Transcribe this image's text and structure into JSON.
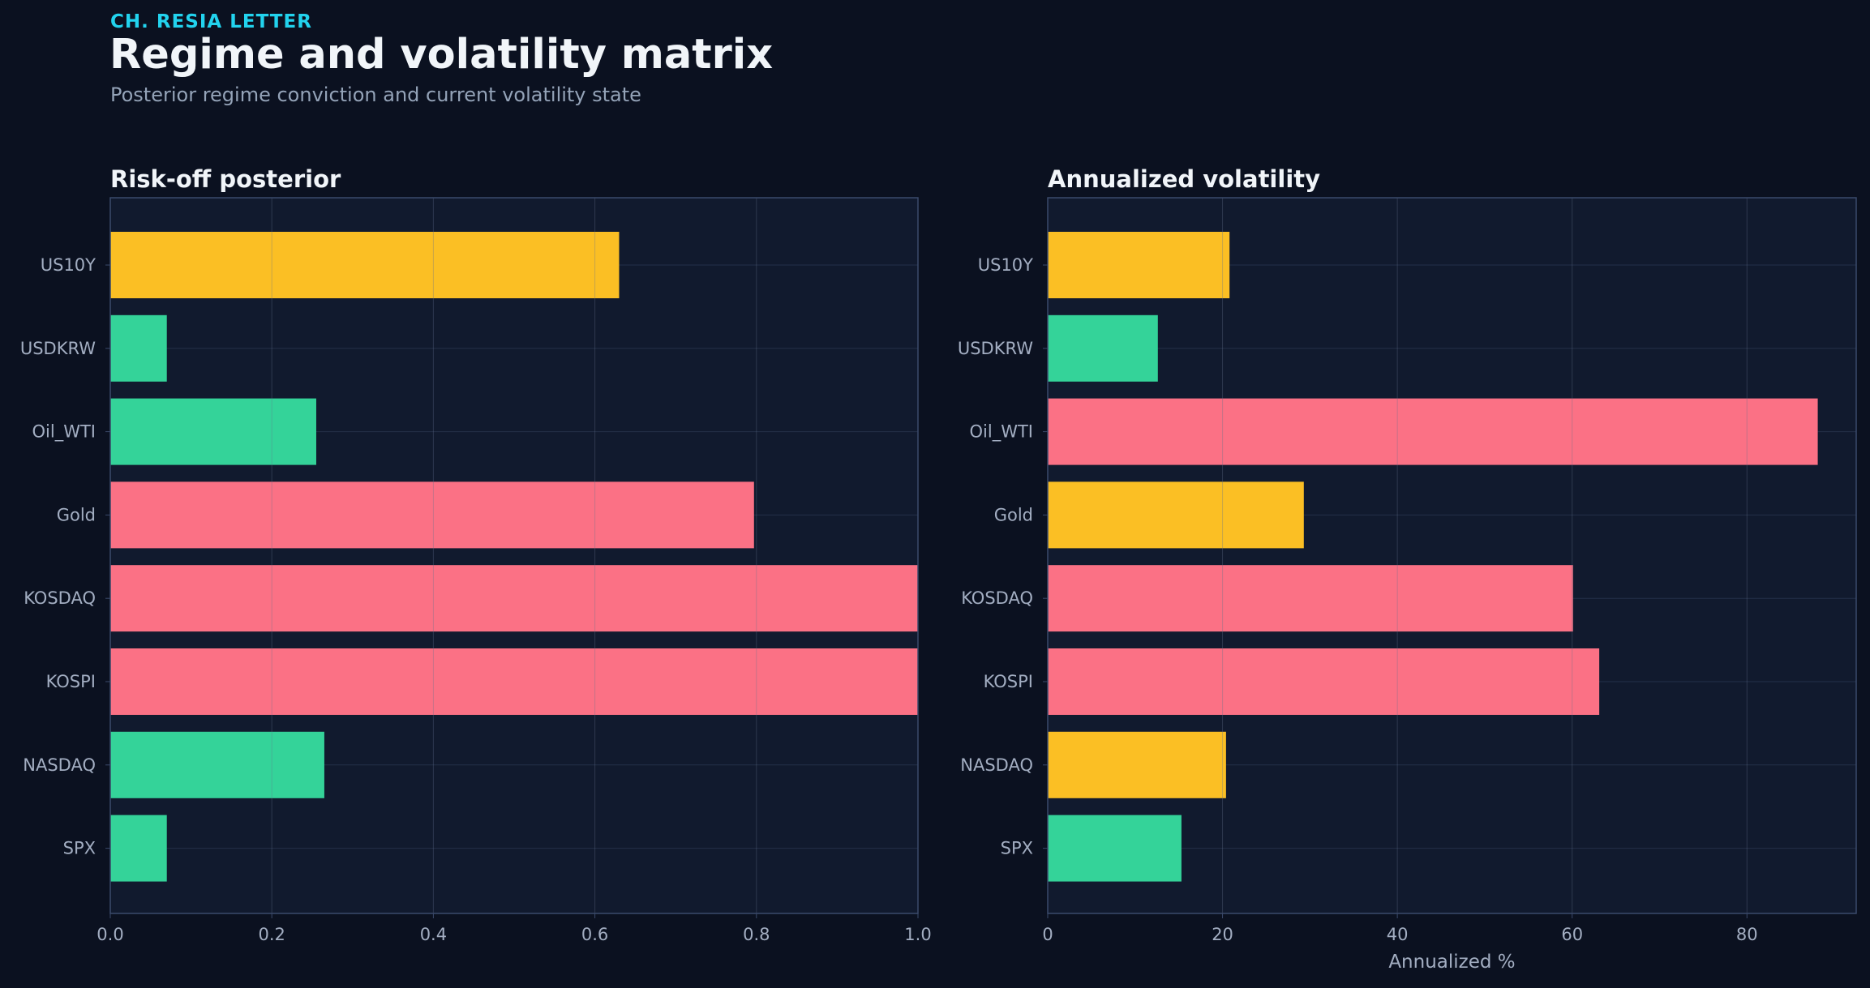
{
  "header": {
    "kicker": "CH. RESIA LETTER",
    "title": "Regime and volatility matrix",
    "subtitle": "Posterior regime conviction and current volatility state"
  },
  "colors": {
    "background": "#0b1120",
    "panel": "#111a2e",
    "grid": "#243049",
    "frame": "#3b4a6b",
    "tick_text": "#a3aec2",
    "yellow": "#fbbf24",
    "green": "#34d399",
    "red": "#fb7185"
  },
  "chart_data": [
    {
      "type": "bar",
      "orientation": "horizontal",
      "title": "Risk-off posterior",
      "xlabel": "",
      "ylabel": "",
      "categories": [
        "US10Y",
        "USDKRW",
        "Oil_WTI",
        "Gold",
        "KOSDAQ",
        "KOSPI",
        "NASDAQ",
        "SPX"
      ],
      "values": [
        0.63,
        0.07,
        0.255,
        0.797,
        1.0,
        1.0,
        0.265,
        0.07
      ],
      "bar_colors": [
        "yellow",
        "green",
        "green",
        "red",
        "red",
        "red",
        "green",
        "green"
      ],
      "xlim": [
        0,
        1.0
      ],
      "xticks": [
        "0.0",
        "0.2",
        "0.4",
        "0.6",
        "0.8",
        "1.0"
      ],
      "xtick_values": [
        0,
        0.2,
        0.4,
        0.6,
        0.8,
        1.0
      ],
      "grid": true
    },
    {
      "type": "bar",
      "orientation": "horizontal",
      "title": "Annualized volatility",
      "xlabel": "Annualized %",
      "ylabel": "",
      "categories": [
        "US10Y",
        "USDKRW",
        "Oil_WTI",
        "Gold",
        "KOSDAQ",
        "KOSPI",
        "NASDAQ",
        "SPX"
      ],
      "values": [
        20.8,
        12.6,
        88.1,
        29.3,
        60.1,
        63.1,
        20.4,
        15.3
      ],
      "bar_colors": [
        "yellow",
        "green",
        "red",
        "yellow",
        "red",
        "red",
        "yellow",
        "green"
      ],
      "xlim": [
        0,
        92.5
      ],
      "xticks": [
        "0",
        "20",
        "40",
        "60",
        "80"
      ],
      "xtick_values": [
        0,
        20,
        40,
        60,
        80
      ],
      "grid": true
    }
  ]
}
